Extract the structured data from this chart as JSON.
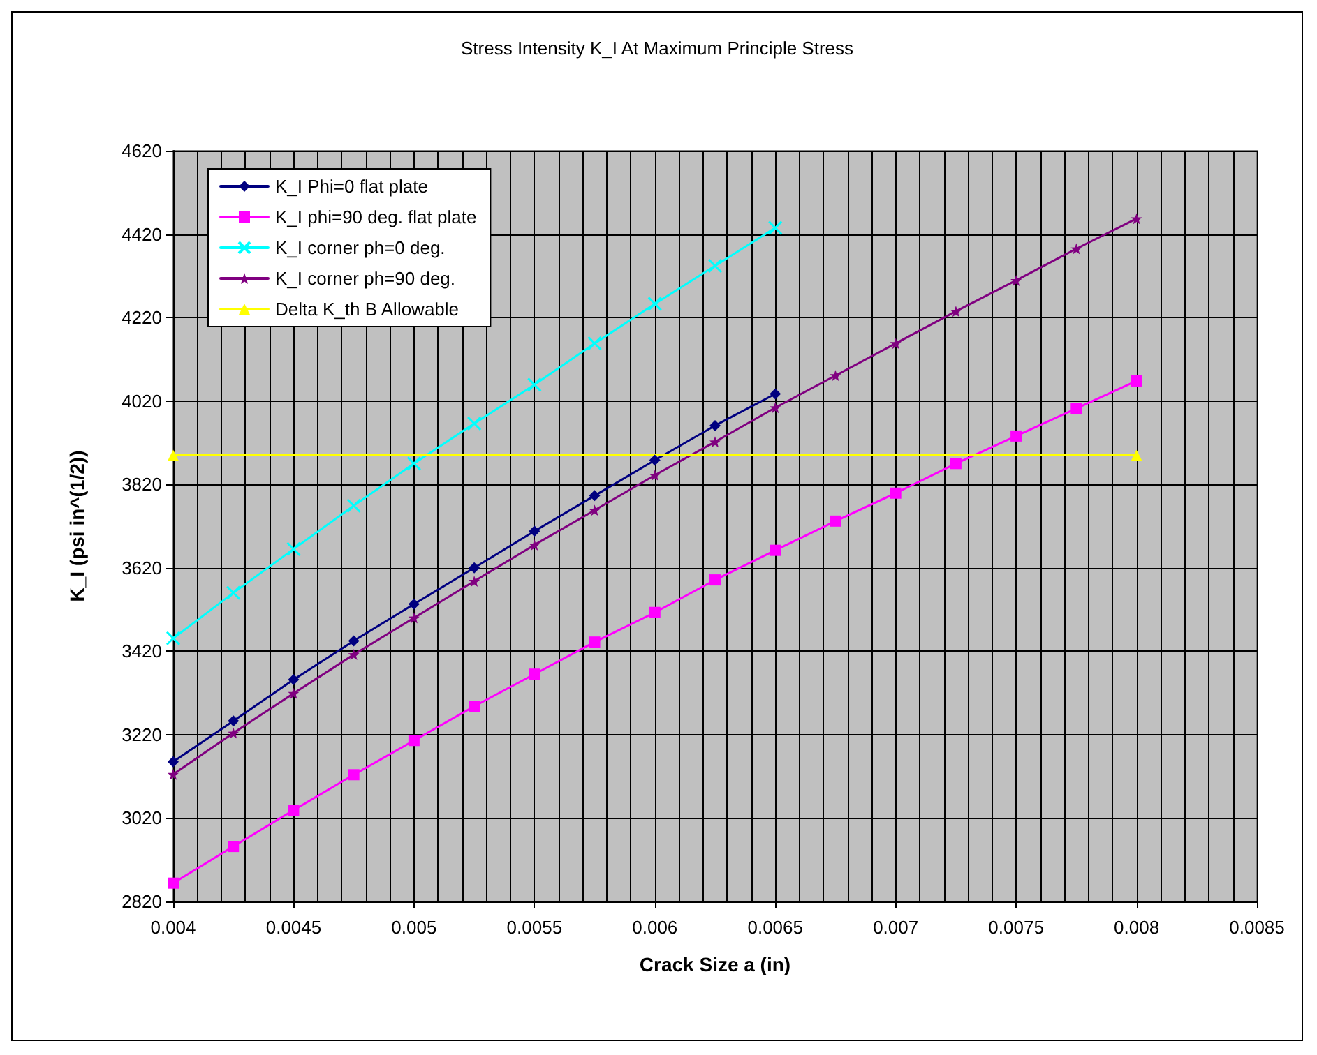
{
  "chart_data": {
    "type": "line",
    "title": "Stress Intensity K_I At Maximum Principle Stress",
    "xlabel": "Crack Size a (in)",
    "ylabel": "K_I (psi in^(1/2))",
    "xlim": [
      0.004,
      0.0085
    ],
    "xticks": [
      0.004,
      0.0045,
      0.005,
      0.0055,
      0.006,
      0.0065,
      0.007,
      0.0075,
      0.008,
      0.0085
    ],
    "ylim": [
      2820,
      4620
    ],
    "yticks": [
      2820,
      3020,
      3220,
      3420,
      3620,
      3820,
      4020,
      4220,
      4420,
      4620
    ],
    "grid": true,
    "legend": "top left",
    "line_style": "solid",
    "series": [
      {
        "name": "K_I Phi=0 flat plate",
        "color": "#000080",
        "marker": "diamond",
        "x": [
          0.004,
          0.00425,
          0.0045,
          0.00475,
          0.005,
          0.00525,
          0.0055,
          0.00575,
          0.006,
          0.00625,
          0.0065
        ],
        "values": [
          3155,
          3253,
          3352,
          3445,
          3533,
          3620,
          3708,
          3793,
          3878,
          3961,
          4037
        ]
      },
      {
        "name": "K_I phi=90 deg. flat plate",
        "color": "#ff00ff",
        "marker": "square",
        "x": [
          0.004,
          0.00425,
          0.0045,
          0.00475,
          0.005,
          0.00525,
          0.0055,
          0.00575,
          0.006,
          0.00625,
          0.0065,
          0.00675,
          0.007,
          0.00725,
          0.0075,
          0.00775,
          0.008
        ],
        "values": [
          2864,
          2952,
          3039,
          3124,
          3206,
          3288,
          3365,
          3442,
          3513,
          3591,
          3662,
          3732,
          3799,
          3870,
          3936,
          4002,
          4068
        ]
      },
      {
        "name": "K_I corner ph=0 deg.",
        "color": "#00ffff",
        "marker": "cross",
        "x": [
          0.004,
          0.00425,
          0.0045,
          0.00475,
          0.005,
          0.00525,
          0.0055,
          0.00575,
          0.006,
          0.00625,
          0.0065
        ],
        "values": [
          3451,
          3560,
          3665,
          3769,
          3870,
          3966,
          4059,
          4158,
          4253,
          4344,
          4435
        ]
      },
      {
        "name": "K_I corner ph=90 deg.",
        "color": "#800080",
        "marker": "star",
        "x": [
          0.004,
          0.00425,
          0.0045,
          0.00475,
          0.005,
          0.00525,
          0.0055,
          0.00575,
          0.006,
          0.00625,
          0.0065,
          0.00675,
          0.007,
          0.00725,
          0.0075,
          0.00775,
          0.008
        ],
        "values": [
          3125,
          3224,
          3319,
          3412,
          3500,
          3588,
          3675,
          3758,
          3842,
          3922,
          4004,
          4081,
          4158,
          4235,
          4309,
          4385,
          4457
        ]
      },
      {
        "name": "Delta K_th B Allowable",
        "color": "#ffff00",
        "marker": "triangle",
        "x": [
          0.004,
          0.008
        ],
        "values": [
          3890,
          3890
        ]
      }
    ]
  }
}
